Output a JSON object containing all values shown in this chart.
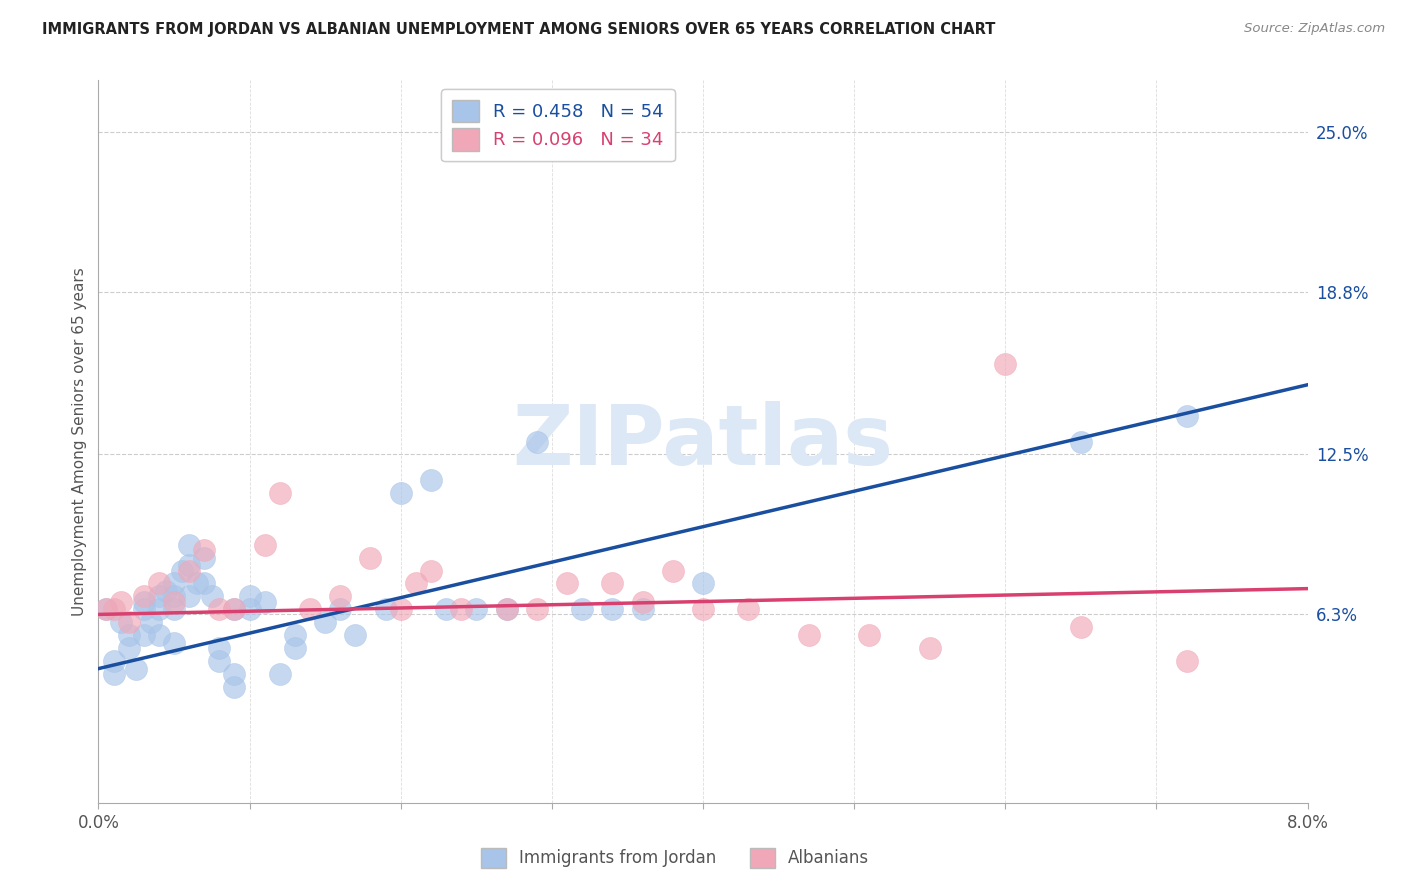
{
  "title": "IMMIGRANTS FROM JORDAN VS ALBANIAN UNEMPLOYMENT AMONG SENIORS OVER 65 YEARS CORRELATION CHART",
  "source": "Source: ZipAtlas.com",
  "ylabel": "Unemployment Among Seniors over 65 years",
  "xlim": [
    0.0,
    0.08
  ],
  "ylim": [
    -0.01,
    0.27
  ],
  "xticks": [
    0.0,
    0.01,
    0.02,
    0.03,
    0.04,
    0.05,
    0.06,
    0.07,
    0.08
  ],
  "xticklabels": [
    "0.0%",
    "",
    "",
    "",
    "",
    "",
    "",
    "",
    "8.0%"
  ],
  "yticks_right": [
    0.063,
    0.125,
    0.188,
    0.25
  ],
  "ytick_right_labels": [
    "6.3%",
    "12.5%",
    "18.8%",
    "25.0%"
  ],
  "blue_R": 0.458,
  "blue_N": 54,
  "pink_R": 0.096,
  "pink_N": 34,
  "blue_label": "Immigrants from Jordan",
  "pink_label": "Albanians",
  "blue_color": "#a8c4e8",
  "blue_line_color": "#1a4fa0",
  "pink_color": "#f0a8b8",
  "pink_line_color": "#d84070",
  "background_color": "#ffffff",
  "blue_x": [
    0.0005,
    0.001,
    0.001,
    0.0015,
    0.002,
    0.002,
    0.0025,
    0.003,
    0.003,
    0.003,
    0.0035,
    0.004,
    0.004,
    0.004,
    0.0045,
    0.005,
    0.005,
    0.005,
    0.005,
    0.0055,
    0.006,
    0.006,
    0.006,
    0.0065,
    0.007,
    0.007,
    0.0075,
    0.008,
    0.008,
    0.009,
    0.009,
    0.009,
    0.01,
    0.01,
    0.011,
    0.012,
    0.013,
    0.013,
    0.015,
    0.016,
    0.017,
    0.019,
    0.02,
    0.022,
    0.023,
    0.025,
    0.027,
    0.029,
    0.032,
    0.034,
    0.036,
    0.04,
    0.065,
    0.072
  ],
  "blue_y": [
    0.065,
    0.045,
    0.04,
    0.06,
    0.055,
    0.05,
    0.042,
    0.068,
    0.065,
    0.055,
    0.06,
    0.07,
    0.065,
    0.055,
    0.072,
    0.075,
    0.07,
    0.065,
    0.052,
    0.08,
    0.09,
    0.082,
    0.07,
    0.075,
    0.085,
    0.075,
    0.07,
    0.05,
    0.045,
    0.065,
    0.04,
    0.035,
    0.07,
    0.065,
    0.068,
    0.04,
    0.055,
    0.05,
    0.06,
    0.065,
    0.055,
    0.065,
    0.11,
    0.115,
    0.065,
    0.065,
    0.065,
    0.13,
    0.065,
    0.065,
    0.065,
    0.075,
    0.13,
    0.14
  ],
  "pink_x": [
    0.0005,
    0.001,
    0.0015,
    0.002,
    0.003,
    0.004,
    0.005,
    0.006,
    0.007,
    0.008,
    0.009,
    0.011,
    0.012,
    0.014,
    0.016,
    0.018,
    0.02,
    0.021,
    0.022,
    0.024,
    0.027,
    0.029,
    0.031,
    0.034,
    0.036,
    0.038,
    0.04,
    0.043,
    0.047,
    0.051,
    0.055,
    0.06,
    0.065,
    0.072
  ],
  "pink_y": [
    0.065,
    0.065,
    0.068,
    0.06,
    0.07,
    0.075,
    0.068,
    0.08,
    0.088,
    0.065,
    0.065,
    0.09,
    0.11,
    0.065,
    0.07,
    0.085,
    0.065,
    0.075,
    0.08,
    0.065,
    0.065,
    0.065,
    0.075,
    0.075,
    0.068,
    0.08,
    0.065,
    0.065,
    0.055,
    0.055,
    0.05,
    0.16,
    0.058,
    0.045
  ],
  "blue_trend_x0": 0.0,
  "blue_trend_y0": 0.042,
  "blue_trend_x1": 0.08,
  "blue_trend_y1": 0.152,
  "pink_trend_x0": 0.0,
  "pink_trend_y0": 0.063,
  "pink_trend_x1": 0.08,
  "pink_trend_y1": 0.073
}
